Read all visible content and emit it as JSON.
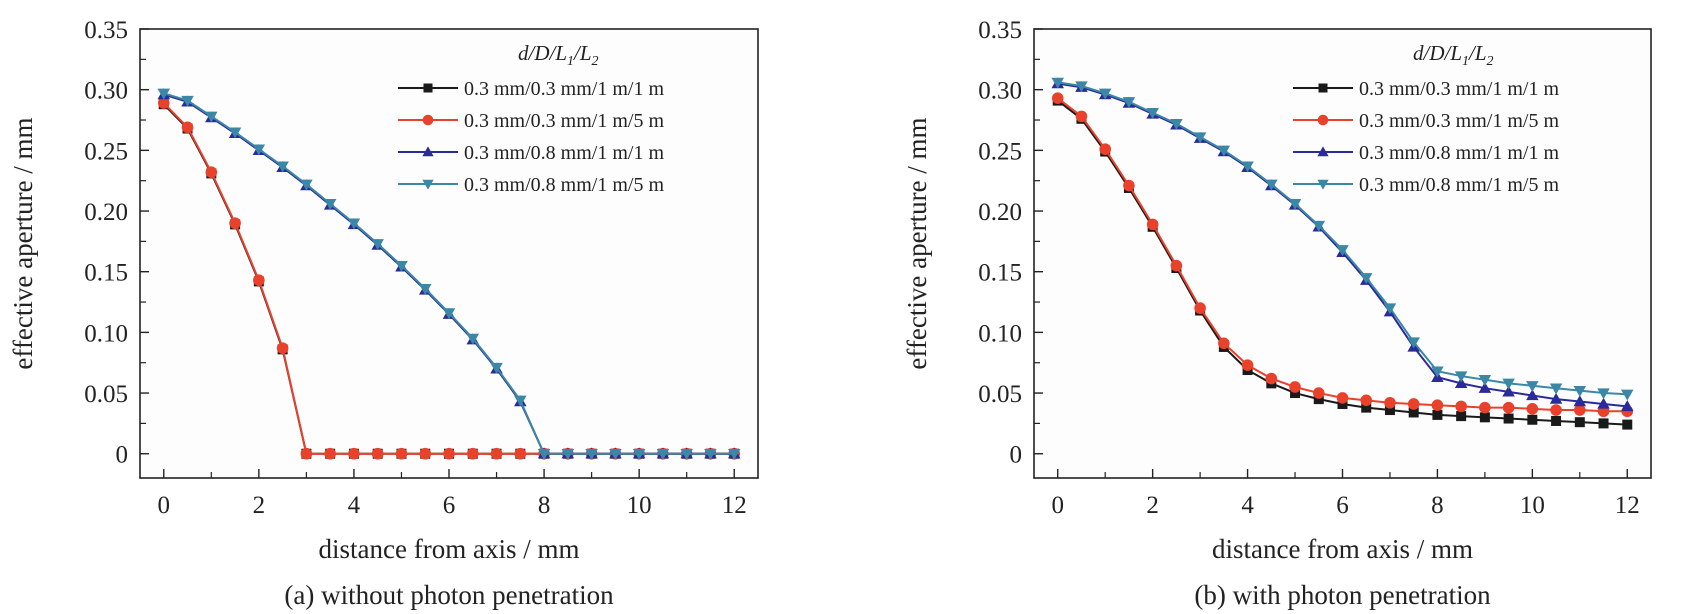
{
  "chart_data": [
    {
      "type": "line",
      "panel": "a",
      "caption": "(a) without photon penetration",
      "title": "",
      "xlabel": "distance from axis / mm",
      "ylabel": "effective aperture / mm",
      "xlim": [
        -0.5,
        12.5
      ],
      "ylim": [
        -0.02,
        0.35
      ],
      "xticks": [
        0,
        2,
        4,
        6,
        8,
        10,
        12
      ],
      "xtick_labels": [
        "0",
        "2",
        "4",
        "6",
        "8",
        "10",
        "12"
      ],
      "yticks": [
        0,
        0.05,
        0.1,
        0.15,
        0.2,
        0.25,
        0.3,
        0.35
      ],
      "ytick_labels": [
        "0",
        "0.05",
        "0.10",
        "0.15",
        "0.20",
        "0.25",
        "0.30",
        "0.35"
      ],
      "grid": false,
      "legend_title": "d/D/L1/L2",
      "legend_placement": "top-right",
      "x": [
        0,
        0.5,
        1,
        1.5,
        2,
        2.5,
        3,
        3.5,
        4,
        4.5,
        5,
        5.5,
        6,
        6.5,
        7,
        7.5,
        8,
        8.5,
        9,
        9.5,
        10,
        10.5,
        11,
        11.5,
        12
      ],
      "series": [
        {
          "name": "0.3 mm/0.3 mm/1 m/1 m",
          "color": "#1a1a1a",
          "marker": "square",
          "values": [
            0.288,
            0.268,
            0.231,
            0.189,
            0.142,
            0.086,
            0,
            0,
            0,
            0,
            0,
            0,
            0,
            0,
            0,
            0,
            0,
            0,
            0,
            0,
            0,
            0,
            0,
            0,
            0
          ]
        },
        {
          "name": "0.3 mm/0.3 mm/1 m/5 m",
          "color": "#e8412c",
          "marker": "circle",
          "values": [
            0.289,
            0.269,
            0.232,
            0.19,
            0.143,
            0.087,
            0,
            0,
            0,
            0,
            0,
            0,
            0,
            0,
            0,
            0,
            0,
            0,
            0,
            0,
            0,
            0,
            0,
            0,
            0
          ]
        },
        {
          "name": "0.3 mm/0.8 mm/1 m/1 m",
          "color": "#2a2a9a",
          "marker": "triangle-up",
          "values": [
            0.296,
            0.29,
            0.277,
            0.264,
            0.25,
            0.236,
            0.221,
            0.205,
            0.189,
            0.172,
            0.154,
            0.135,
            0.115,
            0.094,
            0.07,
            0.043,
            0,
            0,
            0,
            0,
            0,
            0,
            0,
            0,
            0
          ]
        },
        {
          "name": "0.3 mm/0.8 mm/1 m/5 m",
          "color": "#3b87a6",
          "marker": "triangle-down",
          "values": [
            0.297,
            0.291,
            0.278,
            0.265,
            0.251,
            0.237,
            0.222,
            0.206,
            0.19,
            0.173,
            0.155,
            0.136,
            0.116,
            0.095,
            0.071,
            0.044,
            0,
            0,
            0,
            0,
            0,
            0,
            0,
            0,
            0
          ]
        }
      ]
    },
    {
      "type": "line",
      "panel": "b",
      "caption": "(b) with photon penetration",
      "title": "",
      "xlabel": "distance from axis / mm",
      "ylabel": "effective aperture / mm",
      "xlim": [
        -0.5,
        12.5
      ],
      "ylim": [
        -0.02,
        0.35
      ],
      "xticks": [
        0,
        2,
        4,
        6,
        8,
        10,
        12
      ],
      "xtick_labels": [
        "0",
        "2",
        "4",
        "6",
        "8",
        "10",
        "12"
      ],
      "yticks": [
        0,
        0.05,
        0.1,
        0.15,
        0.2,
        0.25,
        0.3,
        0.35
      ],
      "ytick_labels": [
        "0",
        "0.05",
        "0.10",
        "0.15",
        "0.20",
        "0.25",
        "0.30",
        "0.35"
      ],
      "grid": false,
      "legend_title": "d/D/L1/L2",
      "legend_placement": "top-right",
      "x": [
        0,
        0.5,
        1,
        1.5,
        2,
        2.5,
        3,
        3.5,
        4,
        4.5,
        5,
        5.5,
        6,
        6.5,
        7,
        7.5,
        8,
        8.5,
        9,
        9.5,
        10,
        10.5,
        11,
        11.5,
        12
      ],
      "series": [
        {
          "name": "0.3 mm/0.3 mm/1 m/1 m",
          "color": "#1a1a1a",
          "marker": "square",
          "values": [
            0.291,
            0.276,
            0.249,
            0.219,
            0.187,
            0.153,
            0.118,
            0.088,
            0.069,
            0.058,
            0.05,
            0.045,
            0.041,
            0.038,
            0.036,
            0.034,
            0.032,
            0.031,
            0.03,
            0.029,
            0.028,
            0.027,
            0.026,
            0.025,
            0.024
          ]
        },
        {
          "name": "0.3 mm/0.3 mm/1 m/5 m",
          "color": "#e8412c",
          "marker": "circle",
          "values": [
            0.293,
            0.278,
            0.251,
            0.221,
            0.189,
            0.155,
            0.12,
            0.091,
            0.073,
            0.062,
            0.055,
            0.05,
            0.046,
            0.044,
            0.042,
            0.041,
            0.04,
            0.039,
            0.038,
            0.038,
            0.037,
            0.036,
            0.036,
            0.035,
            0.035
          ]
        },
        {
          "name": "0.3 mm/0.8 mm/1 m/1 m",
          "color": "#2a2a9a",
          "marker": "triangle-up",
          "values": [
            0.305,
            0.302,
            0.296,
            0.289,
            0.28,
            0.271,
            0.26,
            0.249,
            0.236,
            0.221,
            0.205,
            0.187,
            0.166,
            0.143,
            0.117,
            0.088,
            0.063,
            0.058,
            0.054,
            0.051,
            0.048,
            0.045,
            0.043,
            0.041,
            0.039
          ]
        },
        {
          "name": "0.3 mm/0.8 mm/1 m/5 m",
          "color": "#3b87a6",
          "marker": "triangle-down",
          "values": [
            0.306,
            0.303,
            0.297,
            0.29,
            0.281,
            0.272,
            0.261,
            0.25,
            0.237,
            0.222,
            0.206,
            0.188,
            0.168,
            0.145,
            0.12,
            0.092,
            0.068,
            0.064,
            0.061,
            0.058,
            0.056,
            0.054,
            0.052,
            0.05,
            0.049
          ]
        }
      ]
    }
  ]
}
